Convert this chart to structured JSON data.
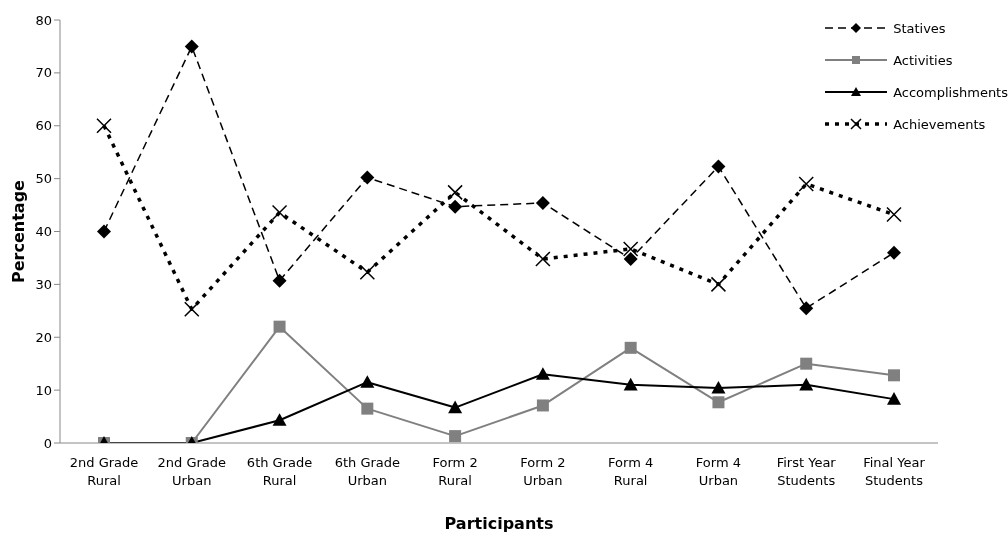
{
  "chart_data": {
    "type": "line",
    "xlabel": "Participants",
    "ylabel": "Percentage",
    "categories": [
      "2nd Grade Rural",
      "2nd Grade Urban",
      "6th Grade Rural",
      "6th Grade Urban",
      "Form 2 Rural",
      "Form 2 Urban",
      "Form 4 Rural",
      "Form 4 Urban",
      "First Year Students",
      "Final Year Students"
    ],
    "series": [
      {
        "name": "Statives",
        "color": "#000000",
        "marker": "diamond",
        "line_style": "dashed",
        "values": [
          40,
          75,
          30.7,
          50.2,
          44.7,
          45.4,
          34.8,
          52.3,
          25.5,
          36
        ]
      },
      {
        "name": "Activities",
        "color": "#808080",
        "marker": "square",
        "line_style": "solid",
        "values": [
          0,
          0,
          22,
          6.5,
          1.3,
          7.1,
          18,
          7.7,
          15,
          12.8
        ]
      },
      {
        "name": "Accomplishments",
        "color": "#000000",
        "marker": "triangle",
        "line_style": "solid",
        "values": [
          0,
          0,
          4.3,
          11.5,
          6.7,
          13,
          11,
          10.4,
          11,
          8.3
        ]
      },
      {
        "name": "Achievements",
        "color": "#000000",
        "marker": "cross",
        "line_style": "dotted",
        "values": [
          60,
          25.3,
          43.6,
          32.3,
          47.4,
          34.8,
          36.7,
          30,
          49,
          43.2
        ]
      }
    ],
    "ylim": [
      0,
      80
    ],
    "yticks": [
      0,
      10,
      20,
      30,
      40,
      50,
      60,
      70,
      80
    ],
    "grid": false,
    "legend": "top right"
  }
}
